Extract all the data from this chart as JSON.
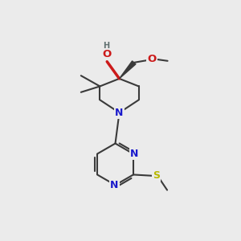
{
  "bg_color": "#ebebeb",
  "bond_color": "#3a3a3a",
  "bond_width": 1.5,
  "atom_colors": {
    "C": "#3a3a3a",
    "N": "#1a1acc",
    "O": "#cc1a1a",
    "S": "#b8b800",
    "H": "#607070"
  },
  "font_size": 8.5,
  "figsize": [
    3.0,
    3.0
  ],
  "dpi": 100,
  "xlim": [
    0,
    10
  ],
  "ylim": [
    0,
    10
  ]
}
